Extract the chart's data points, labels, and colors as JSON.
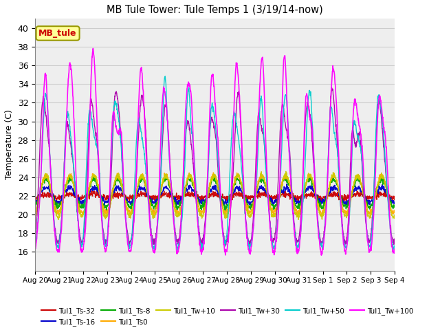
{
  "title": "MB Tule Tower: Tule Temps 1 (3/19/14-now)",
  "ylabel": "Temperature (C)",
  "ylim": [
    14,
    41
  ],
  "yticks": [
    16,
    18,
    20,
    22,
    24,
    26,
    28,
    30,
    32,
    34,
    36,
    38,
    40
  ],
  "n_days": 15,
  "n_points": 1500,
  "series": [
    {
      "label": "Tul1_Ts-32",
      "color": "#cc0000",
      "lw": 1.0,
      "base": 22.0,
      "amp": 0.2,
      "smooth": 50,
      "spike_amp": 0.0
    },
    {
      "label": "Tul1_Ts-16",
      "color": "#0000cc",
      "lw": 1.0,
      "base": 22.1,
      "amp": 0.8,
      "smooth": 30,
      "spike_amp": 0.0
    },
    {
      "label": "Tul1_Ts-8",
      "color": "#00aa00",
      "lw": 1.0,
      "base": 22.3,
      "amp": 1.5,
      "smooth": 20,
      "spike_amp": 0.0
    },
    {
      "label": "Tul1_Ts0",
      "color": "#ffaa00",
      "lw": 1.0,
      "base": 22.2,
      "amp": 2.0,
      "smooth": 15,
      "spike_amp": 0.0
    },
    {
      "label": "Tul1_Tw+10",
      "color": "#cccc00",
      "lw": 1.0,
      "base": 22.0,
      "amp": 2.2,
      "smooth": 12,
      "spike_amp": 0.0
    },
    {
      "label": "Tul1_Tw+30",
      "color": "#aa00aa",
      "lw": 1.0,
      "base": 22.0,
      "amp": 5.0,
      "smooth": 5,
      "spike_amp": 6.0
    },
    {
      "label": "Tul1_Tw+50",
      "color": "#00cccc",
      "lw": 1.0,
      "base": 22.0,
      "amp": 5.5,
      "smooth": 4,
      "spike_amp": 6.5
    },
    {
      "label": "Tul1_Tw+100",
      "color": "#ff00ff",
      "lw": 1.2,
      "base": 22.0,
      "amp": 6.0,
      "smooth": 3,
      "spike_amp": 8.0
    }
  ],
  "xlabel_ticks": [
    "Aug 20",
    "Aug 21",
    "Aug 22",
    "Aug 23",
    "Aug 24",
    "Aug 25",
    "Aug 26",
    "Aug 27",
    "Aug 28",
    "Aug 29",
    "Aug 30",
    "Aug 31",
    "Sep 1",
    "Sep 2",
    "Sep 3",
    "Sep 4"
  ],
  "grid_color": "#cccccc",
  "bg_color": "#ffffff",
  "annotation_text": "MB_tule",
  "annotation_color": "#cc0000",
  "annotation_bg": "#ffff99",
  "annotation_edge": "#999900"
}
